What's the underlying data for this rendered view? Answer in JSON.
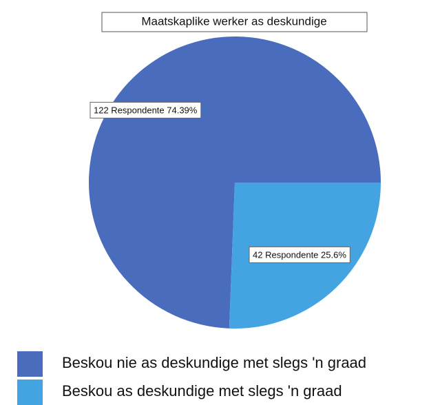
{
  "chart_data": {
    "type": "pie",
    "title": "Maatskaplike werker as deskundige",
    "categories": [
      "Beskou nie as deskundige met slegs 'n graad",
      "Beskou as deskundige met slegs 'n graad"
    ],
    "values": [
      122,
      42
    ],
    "value_labels": [
      "122 Respondente 74.39%",
      "42 Respondente 25.6%"
    ],
    "colors": [
      "#4a6cbc",
      "#44a4e2"
    ]
  }
}
